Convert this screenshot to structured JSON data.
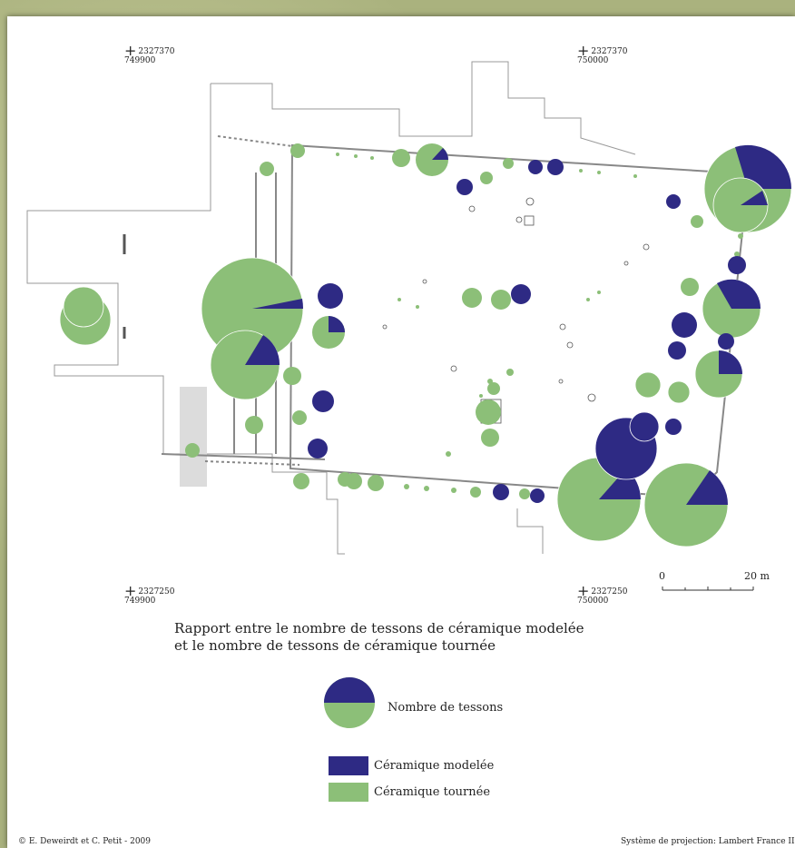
{
  "map": {
    "coords": {
      "top_left": {
        "northing": "2327370",
        "easting": "749900"
      },
      "top_right": {
        "northing": "2327370",
        "easting": "750000"
      },
      "bottom_left": {
        "northing": "2327250",
        "easting": "749900"
      },
      "bottom_right": {
        "northing": "2327250",
        "easting": "750000"
      }
    },
    "scale_bar": {
      "start_label": "0",
      "end_label": "20 m"
    },
    "title_line1": "Rapport entre le nombre de tessons de céramique modelée",
    "title_line2": "et le nombre de tessons de céramique tournée",
    "legend": {
      "size_label": "Nombre de tessons",
      "modelee_label": "Céramique modelée",
      "tournee_label": "Céramique tournée"
    },
    "credit": "© E. Deweirdt et C. Petit - 2009",
    "projection": "Système de projection: Lambert France II",
    "colors": {
      "modelee": "#2e2a84",
      "tournee": "#8cbf78",
      "structure": "#777777",
      "background_frame": "#aab27e"
    }
  }
}
